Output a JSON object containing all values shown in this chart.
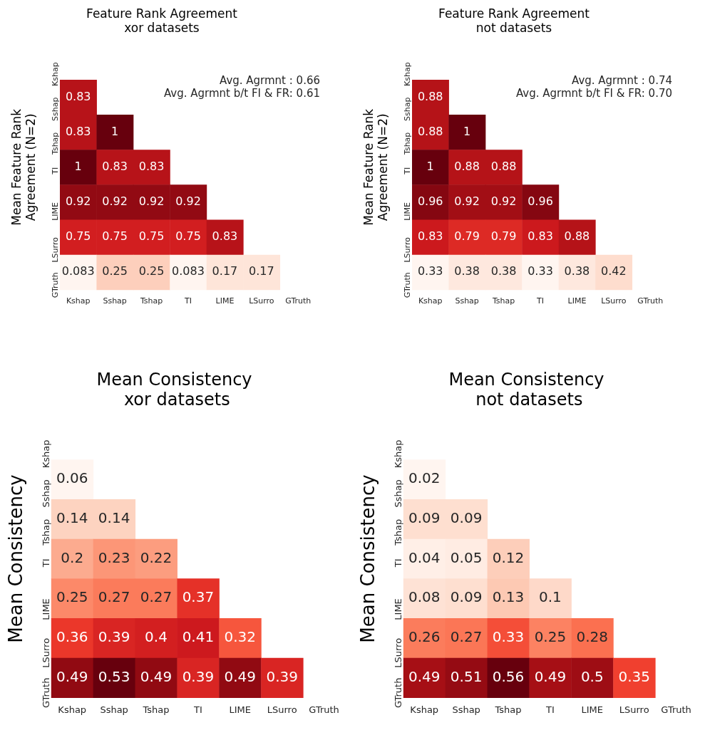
{
  "chart_data": [
    {
      "type": "heatmap",
      "title": "Feature Rank Agreement",
      "subtitle": "xor datasets",
      "ylabel": "Mean Feature Rank\nAgreement (N=2)",
      "categories": [
        "Kshap",
        "Sshap",
        "Tshap",
        "TI",
        "LIME",
        "LSurro",
        "GTruth"
      ],
      "y_categories": [
        "Kshap",
        "Sshap",
        "Tshap",
        "TI",
        "LIME",
        "LSurro",
        "GTruth"
      ],
      "data_labels": true,
      "cells": [
        [
          null,
          null,
          null,
          null,
          null,
          null,
          null
        ],
        [
          0.83,
          null,
          null,
          null,
          null,
          null,
          null
        ],
        [
          0.83,
          1,
          null,
          null,
          null,
          null,
          null
        ],
        [
          1,
          0.83,
          0.83,
          null,
          null,
          null,
          null
        ],
        [
          0.92,
          0.92,
          0.92,
          0.92,
          null,
          null,
          null
        ],
        [
          0.75,
          0.75,
          0.75,
          0.75,
          0.83,
          null,
          null
        ],
        [
          0.083,
          0.25,
          0.25,
          0.083,
          0.17,
          0.17,
          null
        ]
      ],
      "annotations": [
        "Avg. Agrmnt : 0.66",
        "Avg. Agrmnt b/t FI & FR: 0.61"
      ]
    },
    {
      "type": "heatmap",
      "title": "Feature Rank Agreement",
      "subtitle": "not datasets",
      "ylabel": "Mean Feature Rank\nAgreement (N=2)",
      "categories": [
        "Kshap",
        "Sshap",
        "Tshap",
        "TI",
        "LIME",
        "LSurro",
        "GTruth"
      ],
      "y_categories": [
        "Kshap",
        "Sshap",
        "Tshap",
        "TI",
        "LIME",
        "LSurro",
        "GTruth"
      ],
      "data_labels": true,
      "cells": [
        [
          null,
          null,
          null,
          null,
          null,
          null,
          null
        ],
        [
          0.88,
          null,
          null,
          null,
          null,
          null,
          null
        ],
        [
          0.88,
          1,
          null,
          null,
          null,
          null,
          null
        ],
        [
          1,
          0.88,
          0.88,
          null,
          null,
          null,
          null
        ],
        [
          0.96,
          0.92,
          0.92,
          0.96,
          null,
          null,
          null
        ],
        [
          0.83,
          0.79,
          0.79,
          0.83,
          0.88,
          null,
          null
        ],
        [
          0.33,
          0.38,
          0.38,
          0.33,
          0.38,
          0.42,
          null
        ]
      ],
      "annotations": [
        "Avg. Agrmnt : 0.74",
        "Avg. Agrmnt b/t FI & FR: 0.70"
      ]
    },
    {
      "type": "heatmap",
      "title": "Mean Consistency",
      "subtitle": " xor datasets",
      "ylabel": "Mean Consistency",
      "categories": [
        "Kshap",
        "Sshap",
        "Tshap",
        "TI",
        "LIME",
        "LSurro",
        "GTruth"
      ],
      "y_categories": [
        "Kshap",
        "Sshap",
        "Tshap",
        "TI",
        "LIME",
        "LSurro",
        "GTruth"
      ],
      "data_labels": true,
      "cells": [
        [
          null,
          null,
          null,
          null,
          null,
          null,
          null
        ],
        [
          0.06,
          null,
          null,
          null,
          null,
          null,
          null
        ],
        [
          0.14,
          0.14,
          null,
          null,
          null,
          null,
          null
        ],
        [
          0.2,
          0.23,
          0.22,
          null,
          null,
          null,
          null
        ],
        [
          0.25,
          0.27,
          0.27,
          0.37,
          null,
          null,
          null
        ],
        [
          0.36,
          0.39,
          0.4,
          0.41,
          0.32,
          null,
          null
        ],
        [
          0.49,
          0.53,
          0.49,
          0.39,
          0.49,
          0.39,
          null
        ]
      ]
    },
    {
      "type": "heatmap",
      "title": "Mean Consistency",
      "subtitle": " not datasets",
      "ylabel": "Mean Consistency",
      "categories": [
        "Kshap",
        "Sshap",
        "Tshap",
        "TI",
        "LIME",
        "LSurro",
        "GTruth"
      ],
      "y_categories": [
        "Kshap",
        "Sshap",
        "Tshap",
        "TI",
        "LIME",
        "LSurro",
        "GTruth"
      ],
      "data_labels": true,
      "cells": [
        [
          null,
          null,
          null,
          null,
          null,
          null,
          null
        ],
        [
          0.02,
          null,
          null,
          null,
          null,
          null,
          null
        ],
        [
          0.09,
          0.09,
          null,
          null,
          null,
          null,
          null
        ],
        [
          0.04,
          0.05,
          0.12,
          null,
          null,
          null,
          null
        ],
        [
          0.08,
          0.09,
          0.13,
          0.1,
          null,
          null,
          null
        ],
        [
          0.26,
          0.27,
          0.33,
          0.25,
          0.28,
          null,
          null
        ],
        [
          0.49,
          0.51,
          0.56,
          0.49,
          0.5,
          0.35,
          null
        ]
      ]
    }
  ]
}
